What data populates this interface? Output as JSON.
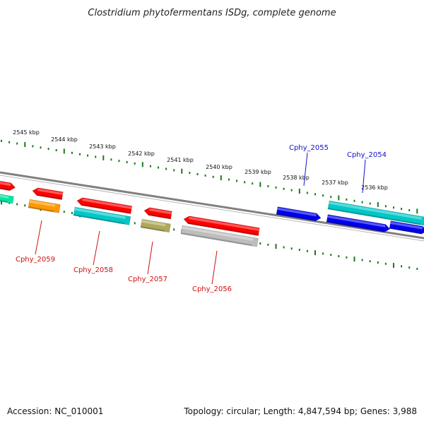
{
  "title": "Clostridium phytofermentans ISDg, complete genome",
  "scale_labels": [
    "2545 kbp",
    "2544 kbp",
    "2543 kbp",
    "2542 kbp",
    "2541 kbp",
    "2540 kbp",
    "2539 kbp",
    "2538 kbp",
    "2537 kbp",
    "2536 kbp"
  ],
  "forward_gene_labels": [
    "Cphy_2055",
    "Cphy_2054"
  ],
  "reverse_gene_labels": [
    "Cphy_2059",
    "Cphy_2058",
    "Cphy_2057",
    "Cphy_2056"
  ],
  "colors": {
    "backbone": "#808080",
    "tick": "#1a7a1a",
    "forward_label": "#1010cc",
    "reverse_label": "#cc1010",
    "red": "#ff0000",
    "blue": "#0000ee",
    "cyan": "#00c8c8",
    "green": "#00e8a0",
    "orange": "#ff9900",
    "olive": "#b0a85a",
    "gray": "#bdbdbd"
  },
  "footer": {
    "accession": "Accession: NC_010001",
    "stats": "Topology: circular; Length: 4,847,594 bp; Genes: 3,988"
  }
}
